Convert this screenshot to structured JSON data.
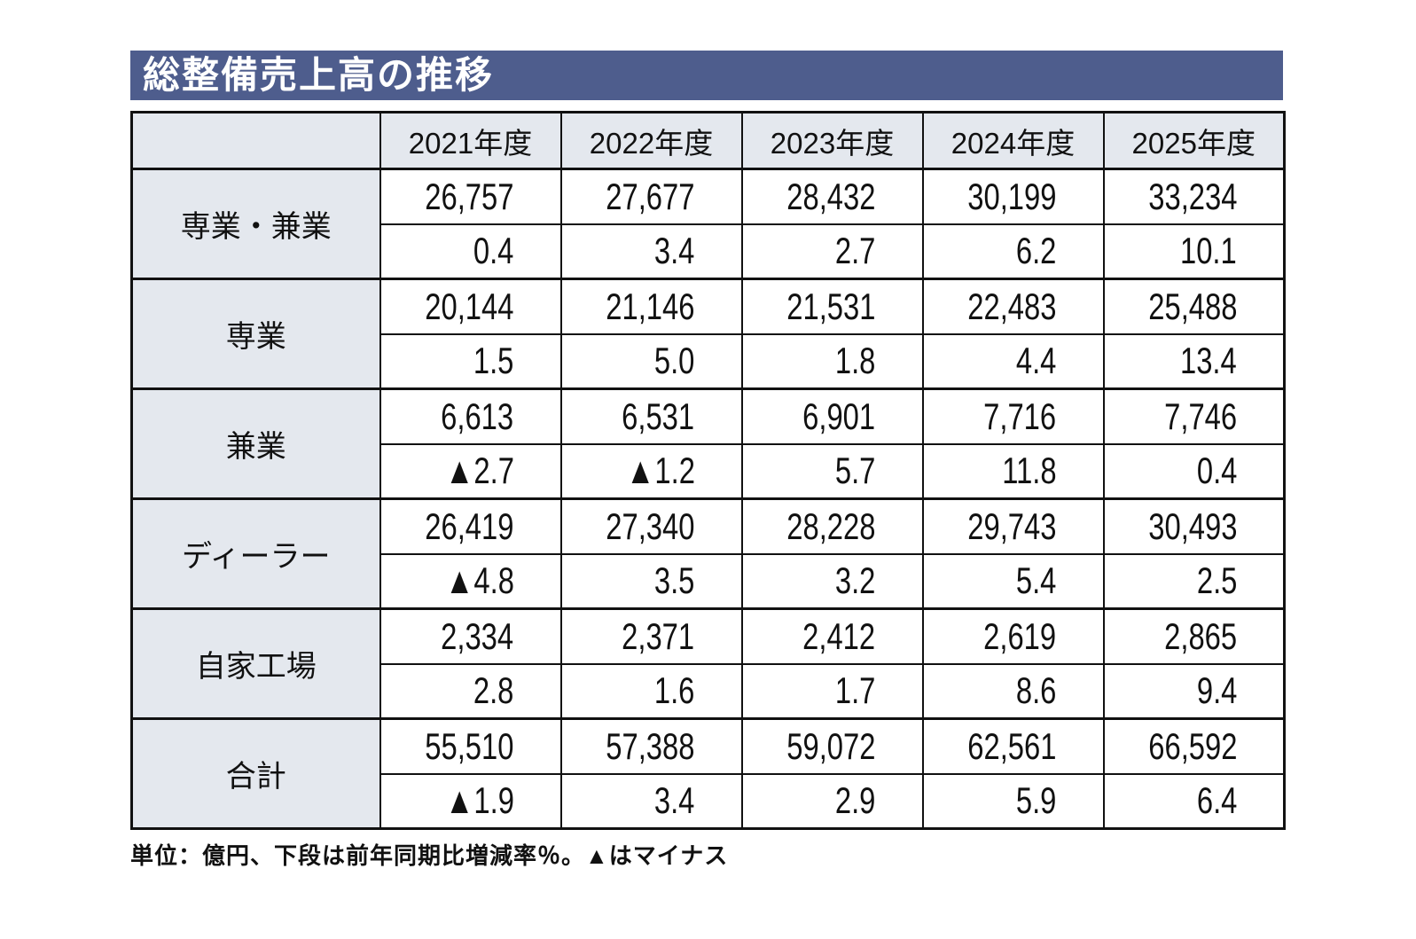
{
  "title": "総整備売上高の推移",
  "footnote": "単位：億円、下段は前年同期比増減率％。▲はマイナス",
  "colors": {
    "title_bg": "#4e5d8d",
    "header_bg": "#e4e8ee",
    "border": "#111111",
    "title_text": "#ffffff"
  },
  "chart_data": {
    "type": "table",
    "title": "総整備売上高の推移",
    "unit": "億円",
    "columns": [
      "2021年度",
      "2022年度",
      "2023年度",
      "2024年度",
      "2025年度"
    ],
    "rows": [
      {
        "label": "専業・兼業",
        "values": [
          "26,757",
          "27,677",
          "28,432",
          "30,199",
          "33,234"
        ],
        "changes": [
          "0.4",
          "3.4",
          "2.7",
          "6.2",
          "10.1"
        ]
      },
      {
        "label": "専業",
        "values": [
          "20,144",
          "21,146",
          "21,531",
          "22,483",
          "25,488"
        ],
        "changes": [
          "1.5",
          "5.0",
          "1.8",
          "4.4",
          "13.4"
        ]
      },
      {
        "label": "兼業",
        "values": [
          "6,613",
          "6,531",
          "6,901",
          "7,716",
          "7,746"
        ],
        "changes": [
          "▲2.7",
          "▲1.2",
          "5.7",
          "11.8",
          "0.4"
        ]
      },
      {
        "label": "ディーラー",
        "values": [
          "26,419",
          "27,340",
          "28,228",
          "29,743",
          "30,493"
        ],
        "changes": [
          "▲4.8",
          "3.5",
          "3.2",
          "5.4",
          "2.5"
        ]
      },
      {
        "label": "自家工場",
        "values": [
          "2,334",
          "2,371",
          "2,412",
          "2,619",
          "2,865"
        ],
        "changes": [
          "2.8",
          "1.6",
          "1.7",
          "8.6",
          "9.4"
        ]
      },
      {
        "label": "合計",
        "values": [
          "55,510",
          "57,388",
          "59,072",
          "62,561",
          "66,592"
        ],
        "changes": [
          "▲1.9",
          "3.4",
          "2.9",
          "5.9",
          "6.4"
        ]
      }
    ]
  }
}
